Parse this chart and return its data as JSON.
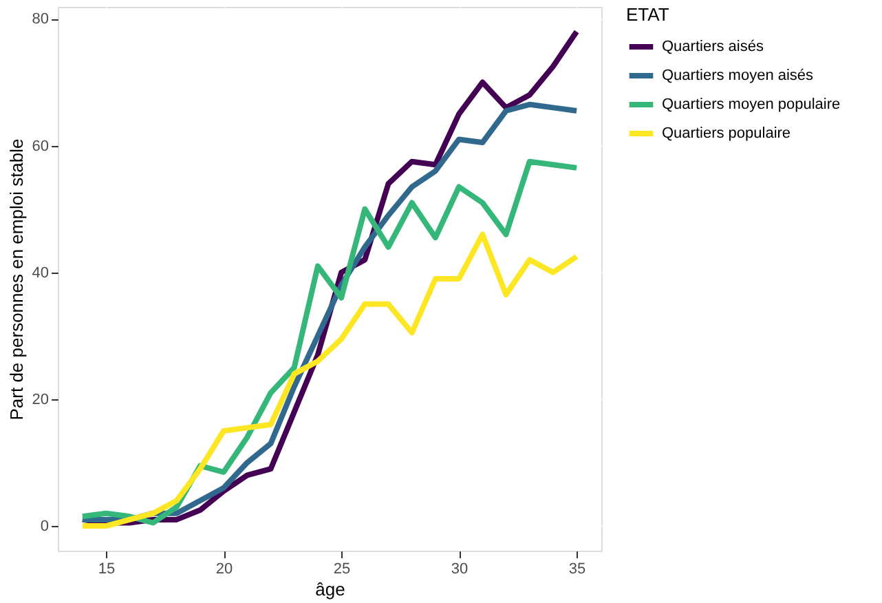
{
  "chart_data": {
    "type": "line",
    "xlabel": "âge",
    "ylabel": "Part de personnes en emploi stable",
    "legend_title": "ETAT",
    "x": [
      14,
      15,
      16,
      17,
      18,
      19,
      20,
      21,
      22,
      23,
      24,
      25,
      26,
      27,
      28,
      29,
      30,
      31,
      32,
      33,
      34,
      35
    ],
    "series": [
      {
        "name": "Quartiers aisés",
        "color": "#440154",
        "values": [
          1,
          0.5,
          0.5,
          1,
          1,
          2.5,
          5.5,
          8,
          9,
          18,
          27,
          40,
          42,
          54,
          57.5,
          57,
          65,
          70,
          66,
          68,
          72.5,
          78
        ]
      },
      {
        "name": "Quartiers moyen aisés",
        "color": "#31688e",
        "values": [
          1,
          1,
          1,
          2,
          2,
          4,
          6,
          10,
          13,
          22,
          30,
          38,
          44,
          49,
          53.5,
          56,
          61,
          60.5,
          65.5,
          66.5,
          66,
          65.5
        ]
      },
      {
        "name": "Quartiers moyen populaire",
        "color": "#35b779",
        "values": [
          1.5,
          2,
          1.5,
          0.5,
          3,
          9.5,
          8.5,
          14,
          21,
          25,
          41,
          36,
          50,
          44,
          51,
          45.5,
          53.5,
          51,
          46,
          57.5,
          57,
          56.5
        ]
      },
      {
        "name": "Quartiers populaire",
        "color": "#fde725",
        "values": [
          0,
          0,
          1,
          2,
          4,
          9,
          15,
          15.5,
          16,
          24,
          26,
          29.5,
          35,
          35,
          30.5,
          39,
          39,
          46,
          36.5,
          42,
          40,
          42.5
        ]
      }
    ],
    "xlim": [
      12.95,
      36.05
    ],
    "xticks": [
      15,
      20,
      25,
      30,
      35
    ],
    "ylim": [
      -3.9,
      81.9
    ],
    "yticks": [
      0,
      20,
      40,
      60,
      80
    ],
    "grid": true,
    "legend": "right",
    "marker": "none",
    "line_style": "solid"
  }
}
